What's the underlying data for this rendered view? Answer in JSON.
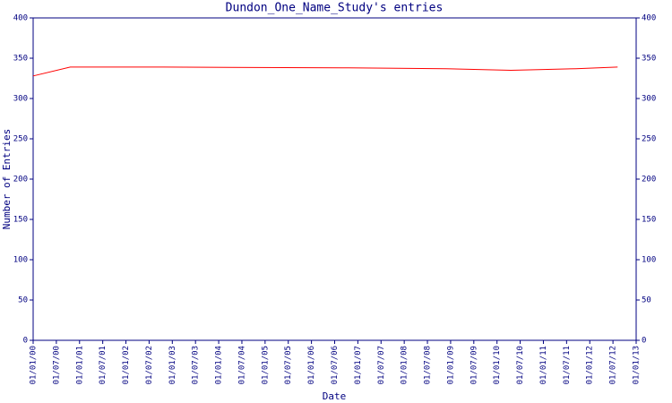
{
  "chart_data": {
    "type": "line",
    "title": "Dundon_One_Name_Study's entries",
    "xlabel": "Date",
    "ylabel": "Number of Entries",
    "x": [
      2000,
      2000.8,
      2002.8,
      2006.8,
      2008.9,
      2009.6,
      2010.3,
      2011.0,
      2011.7,
      2012.6
    ],
    "series": [
      {
        "name": "entries",
        "color": "#ff0000",
        "values": [
          328,
          339,
          339,
          338,
          337,
          336,
          335,
          336,
          337,
          339
        ]
      }
    ],
    "xlim": [
      2000,
      2013
    ],
    "xticks": [
      {
        "value": 2000,
        "label": "01/01/00"
      },
      {
        "value": 2000.5,
        "label": "01/07/00"
      },
      {
        "value": 2001,
        "label": "01/01/01"
      },
      {
        "value": 2001.5,
        "label": "01/07/01"
      },
      {
        "value": 2002,
        "label": "01/01/02"
      },
      {
        "value": 2002.5,
        "label": "01/07/02"
      },
      {
        "value": 2003,
        "label": "01/01/03"
      },
      {
        "value": 2003.5,
        "label": "01/07/03"
      },
      {
        "value": 2004,
        "label": "01/01/04"
      },
      {
        "value": 2004.5,
        "label": "01/07/04"
      },
      {
        "value": 2005,
        "label": "01/01/05"
      },
      {
        "value": 2005.5,
        "label": "01/07/05"
      },
      {
        "value": 2006,
        "label": "01/01/06"
      },
      {
        "value": 2006.5,
        "label": "01/07/06"
      },
      {
        "value": 2007,
        "label": "01/01/07"
      },
      {
        "value": 2007.5,
        "label": "01/07/07"
      },
      {
        "value": 2008,
        "label": "01/01/08"
      },
      {
        "value": 2008.5,
        "label": "01/07/08"
      },
      {
        "value": 2009,
        "label": "01/01/09"
      },
      {
        "value": 2009.5,
        "label": "01/07/09"
      },
      {
        "value": 2010,
        "label": "01/01/10"
      },
      {
        "value": 2010.5,
        "label": "01/07/10"
      },
      {
        "value": 2011,
        "label": "01/01/11"
      },
      {
        "value": 2011.5,
        "label": "01/07/11"
      },
      {
        "value": 2012,
        "label": "01/01/12"
      },
      {
        "value": 2012.5,
        "label": "01/07/12"
      },
      {
        "value": 2013,
        "label": "01/01/13"
      }
    ],
    "ylim": [
      0,
      400
    ],
    "yticks": [
      0,
      50,
      100,
      150,
      200,
      250,
      300,
      350,
      400
    ],
    "y2lim": [
      0,
      400
    ],
    "y2ticks": [
      0,
      50,
      100,
      150,
      200,
      250,
      300,
      350,
      400
    ],
    "axis_color": "#000080"
  }
}
